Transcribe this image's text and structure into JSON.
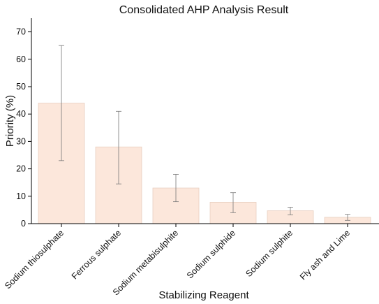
{
  "chart_data": {
    "type": "bar",
    "title": "Consolidated AHP Analysis Result",
    "xlabel": "Stabilizing Reagent",
    "ylabel": "Priority (%)",
    "ylim": [
      0,
      75
    ],
    "yticks": [
      0,
      10,
      20,
      30,
      40,
      50,
      60,
      70
    ],
    "grid": false,
    "categories": [
      "Sodium thiosulphate",
      "Ferrous sulphate",
      "Sodium metabisulphite",
      "Sodium sulphide",
      "Sodium sulphite",
      "Fly ash and Lime"
    ],
    "values": [
      44,
      28,
      13,
      7.8,
      4.7,
      2.3
    ],
    "error_low": [
      23,
      14.5,
      8,
      4,
      3.2,
      1.2
    ],
    "error_high": [
      65,
      41,
      18,
      11.3,
      6,
      3.4
    ],
    "bar_color": "#fce7db",
    "bar_edge_color": "#e8cfc1",
    "error_color": "#777777"
  }
}
